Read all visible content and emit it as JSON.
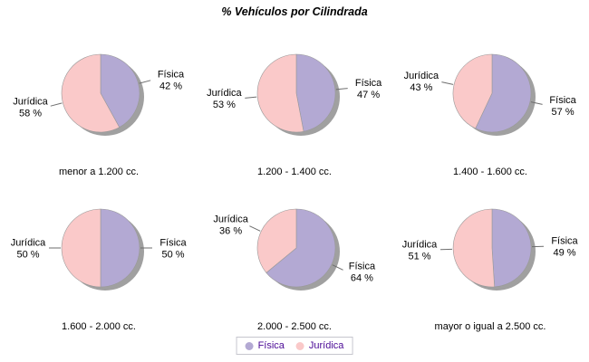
{
  "title": "% Vehículos por Cilindrada",
  "colors": {
    "fisica": "#b3a9d3",
    "juridica": "#fac9c9",
    "shadow": "#a0a0a0",
    "slice_outline": "#999999",
    "leader_line": "#6e6e6e",
    "label_text": "#000000",
    "legend_text": "#4b0a96",
    "legend_border": "#c6c6ce"
  },
  "chart_data": {
    "type": "pie",
    "title": "% Vehículos por Cilindrada",
    "legend": [
      "Física",
      "Jurídica"
    ],
    "series_names": {
      "fisica": "Física",
      "juridica": "Jurídica"
    },
    "value_suffix": " %",
    "multiples": [
      {
        "category": "menor a 1.200 cc.",
        "fisica": 42,
        "juridica": 58
      },
      {
        "category": "1.200 - 1.400 cc.",
        "fisica": 47,
        "juridica": 53
      },
      {
        "category": "1.400 - 1.600 cc.",
        "fisica": 57,
        "juridica": 43
      },
      {
        "category": "1.600 - 2.000 cc.",
        "fisica": 50,
        "juridica": 50
      },
      {
        "category": "2.000 - 2.500 cc.",
        "fisica": 64,
        "juridica": 36
      },
      {
        "category": "mayor o igual a 2.500 cc.",
        "fisica": 49,
        "juridica": 51
      }
    ],
    "layout": {
      "grid": "2 rows x 3 cols",
      "slice_start": "12 o'clock, Física clockwise first",
      "labels": "radial callouts with leader lines",
      "legend_position": "bottom-center",
      "shadow": "offset bottom-right"
    }
  }
}
